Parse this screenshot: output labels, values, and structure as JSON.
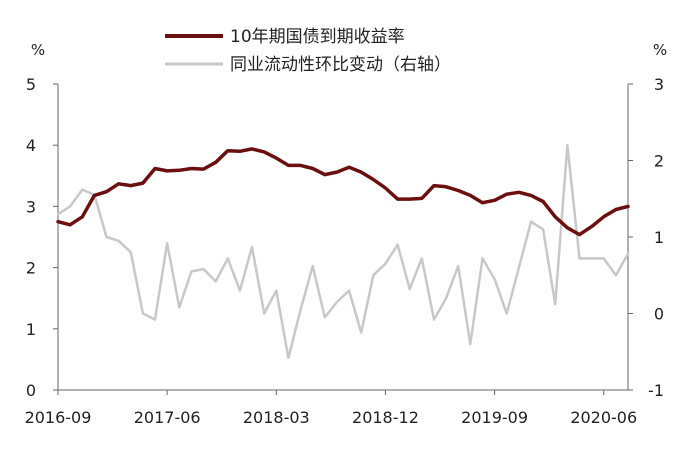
{
  "chart_data": {
    "type": "line",
    "title": "",
    "legend": {
      "placement": "top-center",
      "entries": [
        "10年期国债到期收益率",
        "同业流动性环比变动（右轴）"
      ]
    },
    "y_left": {
      "unit": "%",
      "range": [
        0,
        5
      ],
      "ticks": [
        "0",
        "1",
        "2",
        "3",
        "4",
        "5"
      ]
    },
    "y_right": {
      "unit": "%",
      "range": [
        -1,
        3
      ],
      "ticks": [
        "-1",
        "0",
        "1",
        "2",
        "3"
      ]
    },
    "x_ticks": [
      "2016-09",
      "2017-06",
      "2018-03",
      "2018-12",
      "2019-09",
      "2020-06"
    ],
    "x": [
      "2016-09",
      "2016-10",
      "2016-11",
      "2016-12",
      "2017-01",
      "2017-02",
      "2017-03",
      "2017-04",
      "2017-05",
      "2017-06",
      "2017-07",
      "2017-08",
      "2017-09",
      "2017-10",
      "2017-11",
      "2017-12",
      "2018-01",
      "2018-02",
      "2018-03",
      "2018-04",
      "2018-05",
      "2018-06",
      "2018-07",
      "2018-08",
      "2018-09",
      "2018-10",
      "2018-11",
      "2018-12",
      "2019-01",
      "2019-02",
      "2019-03",
      "2019-04",
      "2019-05",
      "2019-06",
      "2019-07",
      "2019-08",
      "2019-09",
      "2019-10",
      "2019-11",
      "2019-12",
      "2020-01",
      "2020-02",
      "2020-03",
      "2020-04",
      "2020-05",
      "2020-06",
      "2020-07",
      "2020-08"
    ],
    "series": [
      {
        "name": "10年期国债到期收益率",
        "axis": "left",
        "color": "#6b0f0f",
        "values": [
          2.75,
          2.7,
          2.83,
          3.18,
          3.24,
          3.37,
          3.34,
          3.38,
          3.62,
          3.58,
          3.59,
          3.62,
          3.61,
          3.72,
          3.91,
          3.9,
          3.94,
          3.89,
          3.79,
          3.67,
          3.67,
          3.62,
          3.52,
          3.56,
          3.64,
          3.56,
          3.44,
          3.3,
          3.12,
          3.12,
          3.13,
          3.34,
          3.32,
          3.26,
          3.18,
          3.06,
          3.1,
          3.2,
          3.23,
          3.18,
          3.08,
          2.83,
          2.65,
          2.54,
          2.67,
          2.83,
          2.95,
          3.0
        ]
      },
      {
        "name": "同业流动性环比变动（右轴）",
        "axis": "right",
        "color": "#c8c8c8",
        "values": [
          1.3,
          1.4,
          1.62,
          1.55,
          1.0,
          0.95,
          0.8,
          0.0,
          -0.08,
          0.92,
          0.08,
          0.55,
          0.58,
          0.42,
          0.72,
          0.3,
          0.87,
          0.0,
          0.3,
          -0.58,
          0.05,
          0.62,
          -0.05,
          0.15,
          0.3,
          -0.25,
          0.5,
          0.65,
          0.9,
          0.32,
          0.72,
          -0.08,
          0.2,
          0.62,
          -0.4,
          0.72,
          0.45,
          0.0,
          0.6,
          1.2,
          1.1,
          0.12,
          2.2,
          0.72,
          0.72,
          0.72,
          0.5,
          0.78
        ]
      }
    ]
  }
}
